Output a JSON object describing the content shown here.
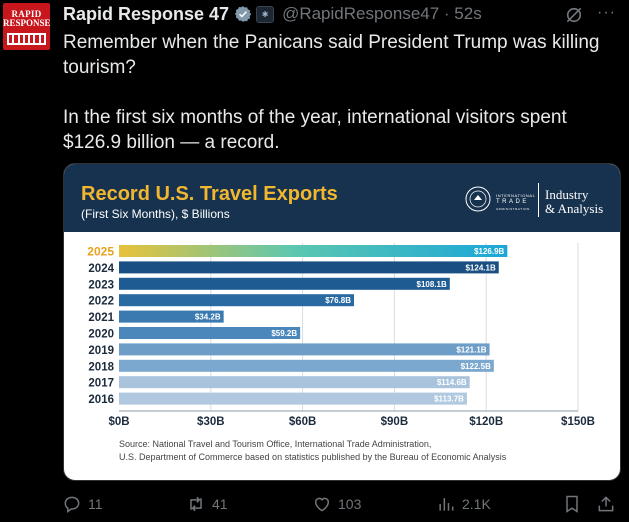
{
  "post": {
    "avatar_line1": "RAPID",
    "avatar_line2": "RESPONSE",
    "author_name": "Rapid Response 47",
    "affiliate_badge": "✱",
    "handle_time": "@RapidResponse47 · 52s",
    "more_label": "···",
    "text_line1": "Remember when the Panicans said President Trump was killing tourism?",
    "text_line2": "In the first six months of the year, international visitors spent $126.9 billion — a record."
  },
  "card": {
    "title": "Record U.S. Travel Exports",
    "subtitle": "(First Six Months), $ Billions",
    "logo_top": "INTERNATIONAL",
    "logo_trade": "TRADE",
    "logo_bottom": "ADMINISTRATION",
    "logo_right_line1": "Industry",
    "logo_right_line2": "& Analysis",
    "source_line1": "Source: National Travel and Tourism Office, International Trade Administration,",
    "source_line2": "U.S. Department of Commerce based on statistics published by the Bureau of Economic Analysis"
  },
  "chart_data": {
    "type": "bar",
    "orientation": "horizontal",
    "title": "Record U.S. Travel Exports",
    "subtitle": "(First Six Months), $ Billions",
    "categories": [
      "2025",
      "2024",
      "2023",
      "2022",
      "2021",
      "2020",
      "2019",
      "2018",
      "2017",
      "2016"
    ],
    "values": [
      126.9,
      124.1,
      108.1,
      76.8,
      34.2,
      59.2,
      121.1,
      122.5,
      114.6,
      113.7
    ],
    "labels": [
      "$126.9B",
      "$124.1B",
      "$108.1B",
      "$76.8B",
      "$34.2B",
      "$59.2B",
      "$121.1B",
      "$122.5B",
      "$114.6B",
      "$113.7B"
    ],
    "colors": [
      "#2bb3d9",
      "#1a4f83",
      "#1e5b93",
      "#2a6aa3",
      "#3a7ab1",
      "#4b87bb",
      "#6e9ec8",
      "#7aa8ce",
      "#a9c3dd",
      "#b1c9e0"
    ],
    "highlight_color": "#e8a21c",
    "xticks": [
      "$0B",
      "$30B",
      "$60B",
      "$90B",
      "$120B",
      "$150B"
    ],
    "xtick_values": [
      0,
      30,
      60,
      90,
      120,
      150
    ],
    "xlim": [
      0,
      150
    ],
    "grid": true
  },
  "actions": {
    "replies": "11",
    "reposts": "41",
    "likes": "103",
    "views": "2.1K"
  }
}
